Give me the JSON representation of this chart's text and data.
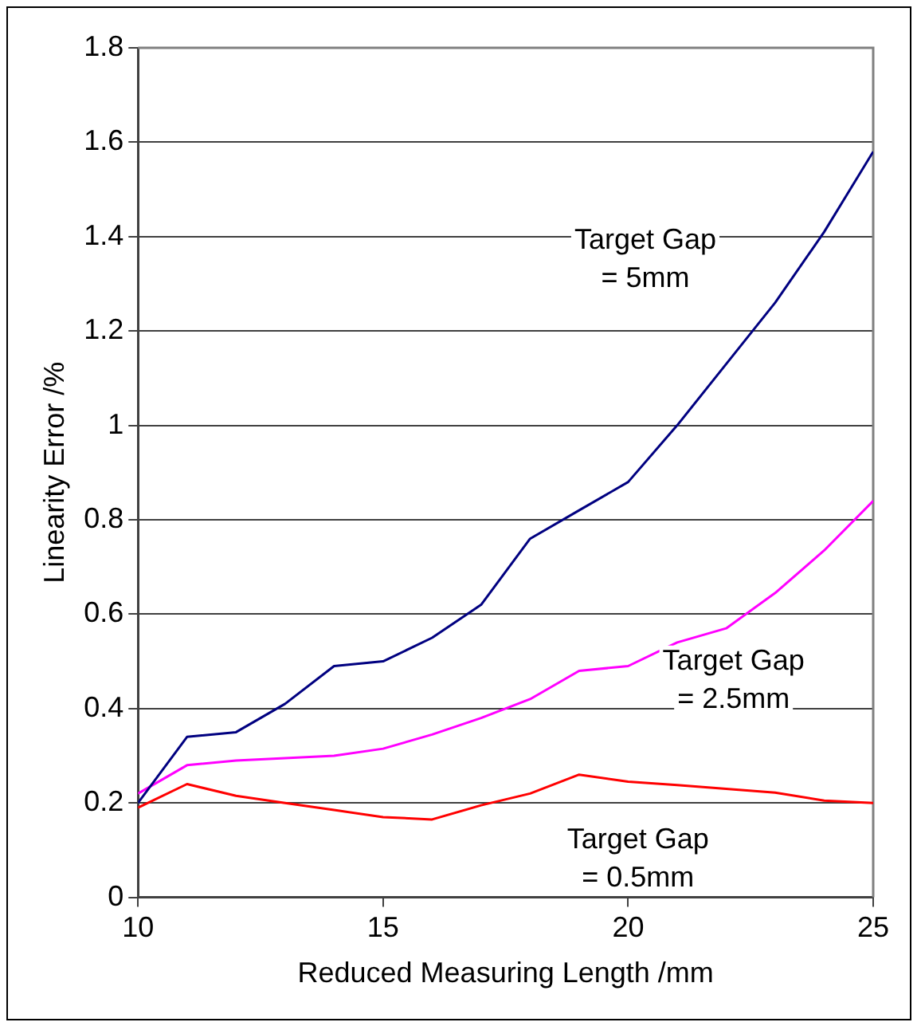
{
  "chart_data": {
    "type": "line",
    "xlabel": "Reduced Measuring Length /mm",
    "ylabel": "Linearity Error /%",
    "x": [
      10,
      11,
      12,
      13,
      14,
      15,
      16,
      17,
      18,
      19,
      20,
      21,
      22,
      23,
      24,
      25
    ],
    "series": [
      {
        "color": "#000080",
        "values": [
          0.2,
          0.34,
          0.35,
          0.41,
          0.49,
          0.5,
          0.55,
          0.62,
          0.76,
          0.82,
          0.88,
          1.0,
          1.13,
          1.26,
          1.41,
          1.58
        ]
      },
      {
        "color": "#ff00ff",
        "values": [
          0.22,
          0.28,
          0.29,
          0.295,
          0.3,
          0.315,
          0.345,
          0.38,
          0.42,
          0.48,
          0.49,
          0.54,
          0.57,
          0.645,
          0.735,
          0.84
        ]
      },
      {
        "color": "#ff0000",
        "values": [
          0.19,
          0.24,
          0.215,
          0.2,
          0.185,
          0.17,
          0.165,
          0.195,
          0.22,
          0.26,
          0.245,
          0.238,
          0.23,
          0.222,
          0.205,
          0.2
        ]
      }
    ],
    "xlim": [
      10,
      25
    ],
    "xticks": [
      10,
      15,
      20,
      25
    ],
    "ylim": [
      0,
      1.8
    ],
    "yticks": [
      0,
      {
        "value": 0.2,
        "label": "0.2"
      },
      {
        "value": 0.4,
        "label": "0.4"
      },
      {
        "value": 0.6,
        "label": "0.6"
      },
      {
        "value": 0.8,
        "label": "0.8"
      },
      1,
      {
        "value": 1.2,
        "label": "1.2"
      },
      {
        "value": 1.4,
        "label": "1.4"
      },
      {
        "value": 1.6,
        "label": "1.6"
      },
      {
        "value": 1.8,
        "label": "1.8"
      }
    ],
    "grid": "y",
    "legend": false,
    "marker": "none",
    "line_style": "solid",
    "annotations": [
      "Target Gap\n= 5mm",
      "Target Gap\n= 2.5mm",
      "Target Gap\n= 0.5mm"
    ]
  }
}
